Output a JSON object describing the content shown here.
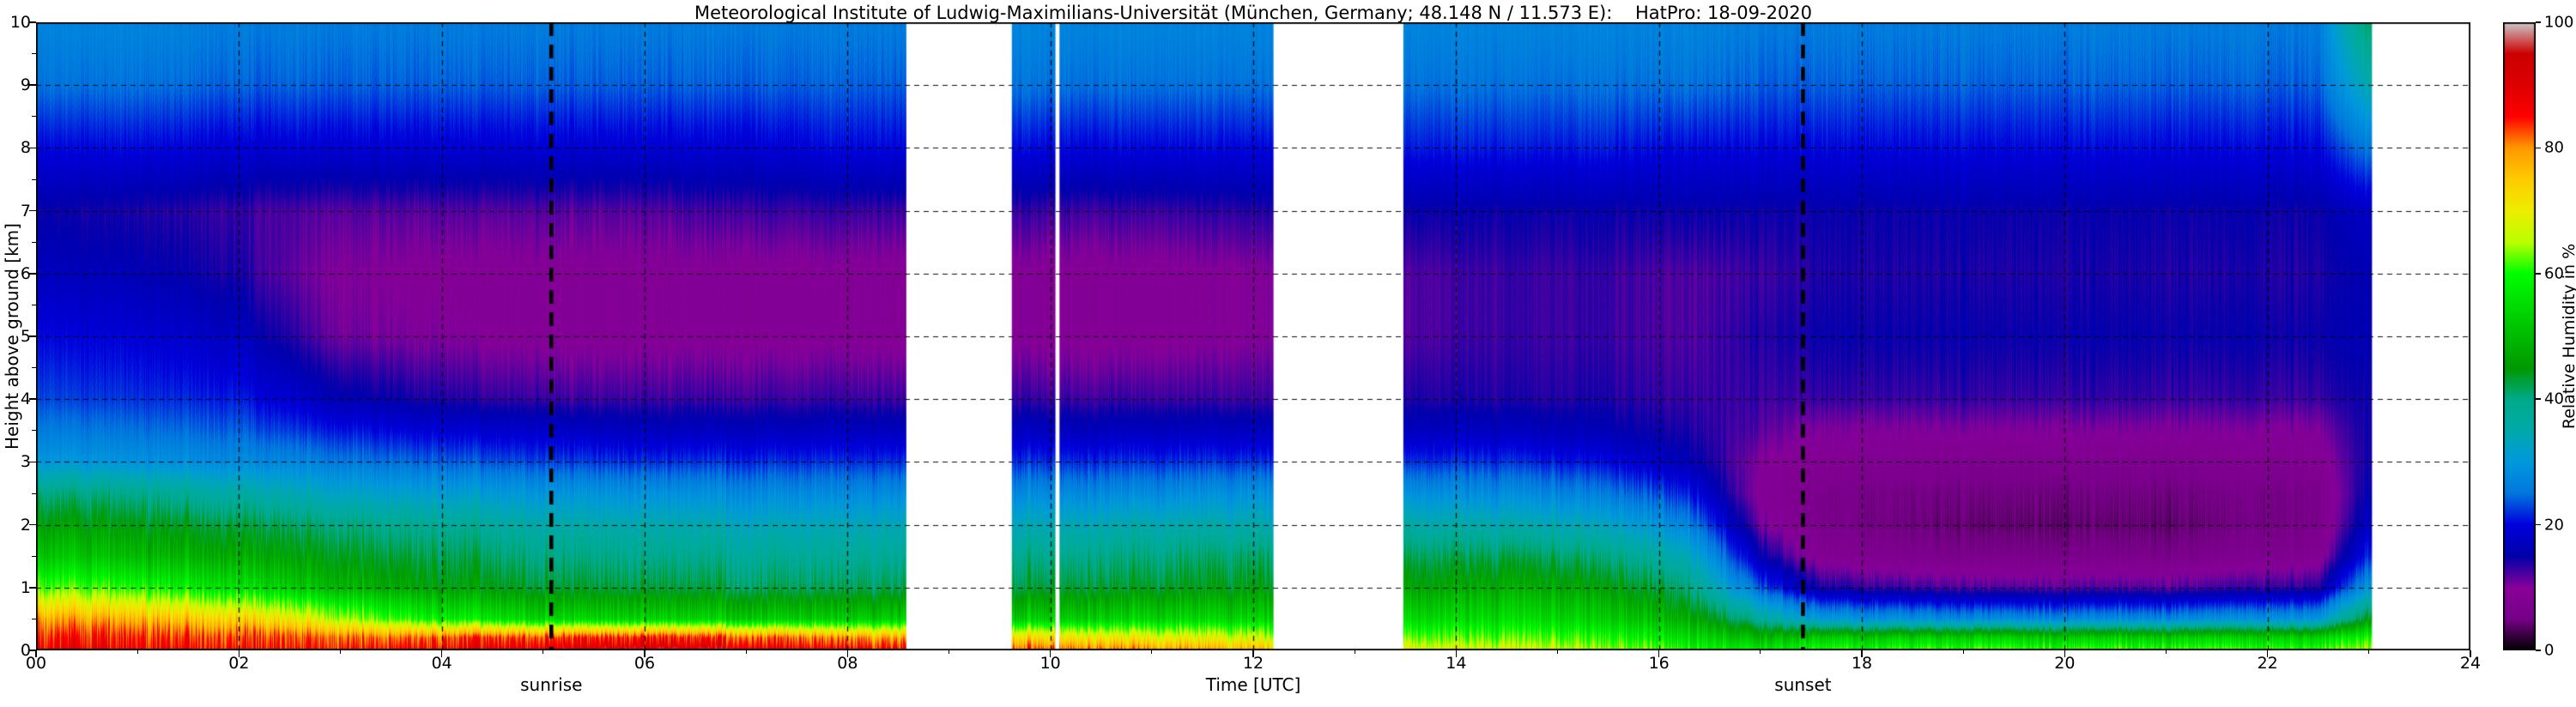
{
  "chart_data": {
    "type": "heatmap",
    "title": "Meteorological Institute of Ludwig-Maximilians-Universität (München, Germany; 48.148 N / 11.573 E):    HatPro: 18-09-2020",
    "xlabel": "Time [UTC]",
    "ylabel": "Height above ground [km]",
    "colorbar_label": "Relative Humidity in %",
    "xlim": [
      0,
      24
    ],
    "ylim": [
      0,
      10
    ],
    "zlim": [
      0,
      100
    ],
    "grid": true,
    "x_tick_values": [
      0,
      2,
      4,
      6,
      8,
      10,
      12,
      14,
      16,
      18,
      20,
      22,
      24
    ],
    "x_tick_labels": [
      "00",
      "02",
      "04",
      "06",
      "08",
      "10",
      "12",
      "14",
      "16",
      "18",
      "20",
      "22",
      "24"
    ],
    "y_tick_values": [
      0,
      1,
      2,
      3,
      4,
      5,
      6,
      7,
      8,
      9,
      10
    ],
    "y_tick_labels": [
      "0",
      "1",
      "2",
      "3",
      "4",
      "5",
      "6",
      "7",
      "8",
      "9",
      "10"
    ],
    "colorbar_tick_values": [
      0,
      20,
      40,
      60,
      80,
      100
    ],
    "colorbar_tick_labels": [
      "0",
      "20",
      "40",
      "60",
      "80",
      "100"
    ],
    "colormap": "nipy_spectral",
    "colormap_stops": [
      [
        0.0,
        "#000000"
      ],
      [
        0.05,
        "#770088"
      ],
      [
        0.1,
        "#880099"
      ],
      [
        0.15,
        "#0000AA"
      ],
      [
        0.2,
        "#0000DD"
      ],
      [
        0.25,
        "#0077DD"
      ],
      [
        0.3,
        "#0099DD"
      ],
      [
        0.35,
        "#00AAAA"
      ],
      [
        0.4,
        "#00AA88"
      ],
      [
        0.45,
        "#009900"
      ],
      [
        0.5,
        "#00BB00"
      ],
      [
        0.55,
        "#00DD00"
      ],
      [
        0.6,
        "#00FF00"
      ],
      [
        0.65,
        "#BBFF00"
      ],
      [
        0.7,
        "#EEEE00"
      ],
      [
        0.75,
        "#FFCC00"
      ],
      [
        0.8,
        "#FF9900"
      ],
      [
        0.85,
        "#FF0000"
      ],
      [
        0.9,
        "#DD0000"
      ],
      [
        0.95,
        "#CC0000"
      ],
      [
        1.0,
        "#CCCCCC"
      ]
    ],
    "annotations": [
      {
        "label": "sunrise",
        "time": 5.08
      },
      {
        "label": "sunset",
        "time": 17.42
      }
    ],
    "gaps": [
      [
        8.58,
        9.62
      ],
      [
        10.05,
        10.09
      ],
      [
        12.2,
        13.48
      ],
      [
        23.03,
        24.0
      ]
    ],
    "heights_km": [
      0,
      0.2,
      0.5,
      1,
      1.5,
      2,
      2.5,
      3,
      3.5,
      4,
      5,
      6,
      7,
      8,
      9,
      10
    ],
    "times_utc": [
      0,
      1,
      2,
      2.6,
      3,
      4,
      5,
      6,
      7,
      8,
      8.6,
      9.6,
      11,
      12.2,
      13.5,
      14.5,
      15.5,
      16.3,
      17,
      17.6,
      19,
      21,
      22.5,
      23
    ],
    "rh_percent": [
      [
        88,
        85,
        78,
        62,
        52,
        46,
        40,
        30,
        26,
        23,
        20,
        17,
        15,
        20,
        25,
        27
      ],
      [
        88,
        85,
        77,
        60,
        50,
        45,
        39,
        29,
        25,
        22,
        19,
        16,
        14,
        20,
        25,
        27
      ],
      [
        87,
        84,
        74,
        56,
        48,
        43,
        36,
        28,
        24,
        21,
        17,
        14,
        13,
        19,
        24,
        26
      ],
      [
        87,
        83,
        70,
        52,
        46,
        41,
        34,
        27,
        22,
        18,
        13,
        11,
        12,
        19,
        24,
        26
      ],
      [
        87,
        82,
        66,
        50,
        45,
        40,
        33,
        26,
        21,
        16,
        11,
        10,
        12,
        19,
        24,
        26
      ],
      [
        88,
        82,
        58,
        46,
        42,
        38,
        31,
        24,
        19,
        14,
        10,
        9,
        12,
        19,
        24,
        26
      ],
      [
        91,
        85,
        55,
        44,
        40,
        36,
        30,
        23,
        18,
        13,
        9,
        9,
        12,
        19,
        24,
        26
      ],
      [
        93,
        86,
        54,
        43,
        39,
        35,
        29,
        22,
        17,
        13,
        9,
        9,
        12,
        19,
        24,
        26
      ],
      [
        91,
        83,
        53,
        42,
        38,
        34,
        28,
        22,
        17,
        13,
        9,
        9,
        13,
        19,
        24,
        26
      ],
      [
        89,
        80,
        53,
        42,
        38,
        34,
        28,
        22,
        17,
        13,
        9,
        9,
        13,
        20,
        24,
        26
      ],
      [
        87,
        78,
        53,
        42,
        38,
        34,
        28,
        22,
        17,
        13,
        9,
        9,
        13,
        20,
        24,
        26
      ],
      [
        84,
        74,
        53,
        43,
        39,
        34,
        28,
        22,
        17,
        13,
        9,
        9,
        13,
        20,
        25,
        27
      ],
      [
        80,
        70,
        54,
        44,
        40,
        35,
        28,
        22,
        17,
        13,
        9,
        9,
        13,
        20,
        25,
        27
      ],
      [
        76,
        67,
        54,
        45,
        41,
        35,
        29,
        22,
        17,
        13,
        10,
        10,
        14,
        20,
        25,
        27
      ],
      [
        70,
        63,
        55,
        47,
        42,
        36,
        29,
        22,
        17,
        14,
        12,
        12,
        15,
        21,
        25,
        27
      ],
      [
        68,
        62,
        55,
        48,
        42,
        35,
        28,
        22,
        17,
        14,
        13,
        13,
        15,
        21,
        25,
        27
      ],
      [
        65,
        60,
        53,
        46,
        40,
        33,
        26,
        20,
        16,
        14,
        13,
        13,
        15,
        21,
        25,
        27
      ],
      [
        60,
        55,
        48,
        40,
        34,
        27,
        21,
        16,
        14,
        13,
        12,
        12,
        15,
        20,
        25,
        27
      ],
      [
        58,
        50,
        38,
        24,
        16,
        11,
        9,
        10,
        12,
        13,
        14,
        13,
        15,
        20,
        24,
        26
      ],
      [
        60,
        52,
        30,
        14,
        8,
        6,
        6,
        8,
        10,
        13,
        15,
        14,
        15,
        20,
        24,
        26
      ],
      [
        62,
        53,
        28,
        12,
        6,
        4,
        5,
        7,
        10,
        13,
        15,
        14,
        15,
        20,
        24,
        26
      ],
      [
        62,
        53,
        28,
        12,
        6,
        4,
        5,
        7,
        10,
        13,
        15,
        14,
        15,
        20,
        24,
        26
      ],
      [
        62,
        54,
        30,
        14,
        8,
        6,
        6,
        8,
        10,
        13,
        15,
        14,
        15,
        20,
        24,
        26
      ],
      [
        66,
        60,
        45,
        30,
        22,
        18,
        16,
        15,
        15,
        15,
        16,
        16,
        18,
        26,
        35,
        42
      ]
    ]
  }
}
